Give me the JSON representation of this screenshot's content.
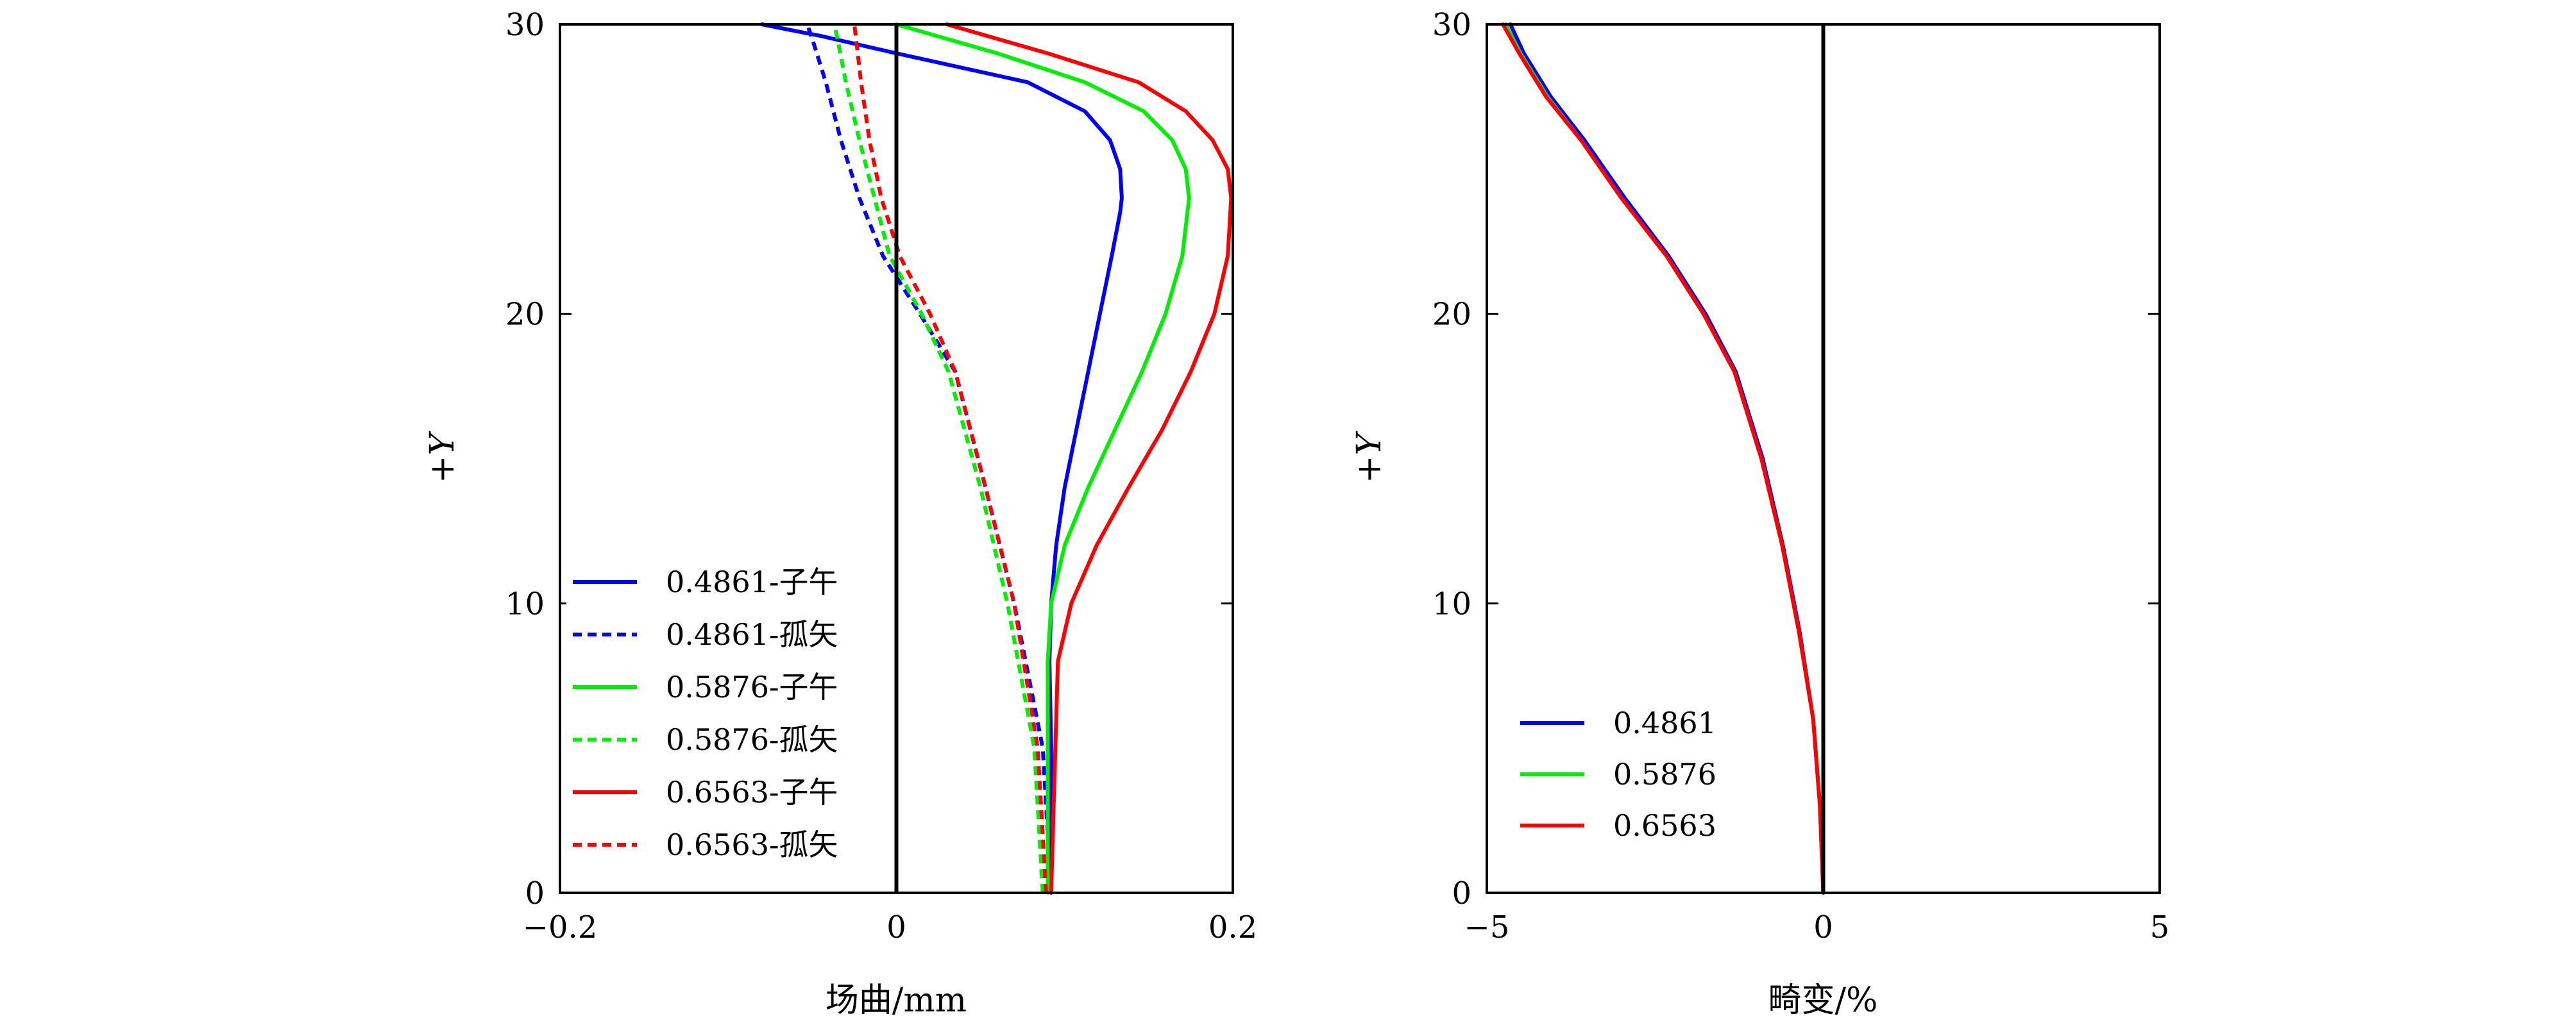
{
  "chart_data": [
    {
      "type": "line",
      "xlabel": "场曲/mm",
      "ylabel": "+Y",
      "xlim": [
        -0.2,
        0.2
      ],
      "ylim": [
        0,
        30
      ],
      "xticks": [
        -0.2,
        0,
        0.2
      ],
      "xtick_labels": [
        "−0.2",
        "0",
        "0.2"
      ],
      "yticks": [
        0,
        10,
        20,
        30
      ],
      "ytick_labels": [
        "0",
        "10",
        "20",
        "30"
      ],
      "grid": false,
      "zero_line": true,
      "legend_position": "bottom-left",
      "colors": {
        "0.4861": "#0000ff",
        "0.5876": "#00ee00",
        "0.6563": "#ff0000"
      },
      "series": [
        {
          "name": "0.4861-子午",
          "color": "#0000ff",
          "style": "solid",
          "x": [
            0.092,
            0.092,
            0.091,
            0.092,
            0.095,
            0.1,
            0.107,
            0.114,
            0.121,
            0.128,
            0.133,
            0.134,
            0.133,
            0.127,
            0.112,
            0.078,
            0.0,
            -0.045,
            -0.08
          ],
          "y": [
            0,
            5,
            8,
            10,
            12,
            14,
            16,
            18,
            20,
            22,
            23.5,
            24,
            25,
            26,
            27,
            28,
            29,
            29.6,
            30
          ]
        },
        {
          "name": "0.4861-孤矢",
          "color": "#0000ff",
          "style": "dashed",
          "x": [
            0.092,
            0.087,
            0.07,
            0.053,
            0.035,
            0.014,
            -0.008,
            -0.022,
            -0.033,
            -0.042,
            -0.05,
            -0.053
          ],
          "y": [
            0,
            5,
            10,
            14,
            18,
            20,
            22,
            24,
            26,
            28,
            29.5,
            30
          ]
        },
        {
          "name": "0.5876-子午",
          "color": "#00ee00",
          "style": "solid",
          "x": [
            0.09,
            0.09,
            0.09,
            0.092,
            0.1,
            0.114,
            0.13,
            0.146,
            0.16,
            0.17,
            0.174,
            0.172,
            0.164,
            0.147,
            0.112,
            0.06,
            0.0
          ],
          "y": [
            0,
            5,
            8,
            10,
            12,
            14,
            16,
            18,
            20,
            22,
            24,
            25,
            26,
            27,
            28,
            29,
            30
          ]
        },
        {
          "name": "0.5876-孤矢",
          "color": "#00ee00",
          "style": "dashed",
          "x": [
            0.087,
            0.082,
            0.066,
            0.05,
            0.031,
            0.015,
            -0.004,
            -0.013,
            -0.022,
            -0.03,
            -0.035,
            -0.037
          ],
          "y": [
            0,
            5,
            10,
            14,
            18,
            20,
            22,
            24,
            26,
            28,
            29.5,
            30
          ]
        },
        {
          "name": "0.6563-子午",
          "color": "#ff0000",
          "style": "solid",
          "x": [
            0.092,
            0.094,
            0.096,
            0.104,
            0.119,
            0.138,
            0.158,
            0.175,
            0.189,
            0.197,
            0.199,
            0.197,
            0.188,
            0.172,
            0.144,
            0.09,
            0.03
          ],
          "y": [
            0,
            4,
            8,
            10,
            12,
            14,
            16,
            18,
            20,
            22,
            24,
            25,
            26,
            27,
            28,
            29,
            30
          ]
        },
        {
          "name": "0.6563-孤矢",
          "color": "#ff0000",
          "style": "dashed",
          "x": [
            0.089,
            0.084,
            0.07,
            0.053,
            0.035,
            0.02,
            0.002,
            -0.009,
            -0.016,
            -0.021,
            -0.024,
            -0.025
          ],
          "y": [
            0,
            5,
            10,
            14,
            18,
            20,
            22,
            24,
            26,
            28,
            29.5,
            30
          ]
        }
      ]
    },
    {
      "type": "line",
      "xlabel": "畸变/%",
      "ylabel": "+Y",
      "xlim": [
        -5,
        5
      ],
      "ylim": [
        0,
        30
      ],
      "xticks": [
        -5,
        0,
        5
      ],
      "xtick_labels": [
        "−5",
        "0",
        "5"
      ],
      "yticks": [
        0,
        10,
        20,
        30
      ],
      "ytick_labels": [
        "0",
        "10",
        "20",
        "30"
      ],
      "grid": false,
      "zero_line": true,
      "legend_position": "bottom-left",
      "series": [
        {
          "name": "0.4861",
          "color": "#0000ff",
          "style": "solid",
          "x": [
            0.0,
            -0.05,
            -0.15,
            -0.35,
            -0.6,
            -0.9,
            -1.3,
            -1.75,
            -2.3,
            -2.95,
            -3.55,
            -4.05,
            -4.45,
            -4.65
          ],
          "y": [
            0,
            3,
            6,
            9,
            12,
            15,
            18,
            20,
            22,
            24,
            26,
            27.5,
            29,
            30
          ]
        },
        {
          "name": "0.5876",
          "color": "#00ee00",
          "style": "solid",
          "x": [
            0.0,
            -0.05,
            -0.15,
            -0.36,
            -0.61,
            -0.92,
            -1.32,
            -1.78,
            -2.33,
            -3.0,
            -3.6,
            -4.1,
            -4.5,
            -4.72
          ],
          "y": [
            0,
            3,
            6,
            9,
            12,
            15,
            18,
            20,
            22,
            24,
            26,
            27.5,
            29,
            30
          ]
        },
        {
          "name": "0.6563",
          "color": "#ff0000",
          "style": "solid",
          "x": [
            0.0,
            -0.05,
            -0.15,
            -0.36,
            -0.61,
            -0.92,
            -1.32,
            -1.78,
            -2.33,
            -3.0,
            -3.6,
            -4.12,
            -4.52,
            -4.76
          ],
          "y": [
            0,
            3,
            6,
            9,
            12,
            15,
            18,
            20,
            22,
            24,
            26,
            27.5,
            29,
            30
          ]
        }
      ]
    }
  ]
}
